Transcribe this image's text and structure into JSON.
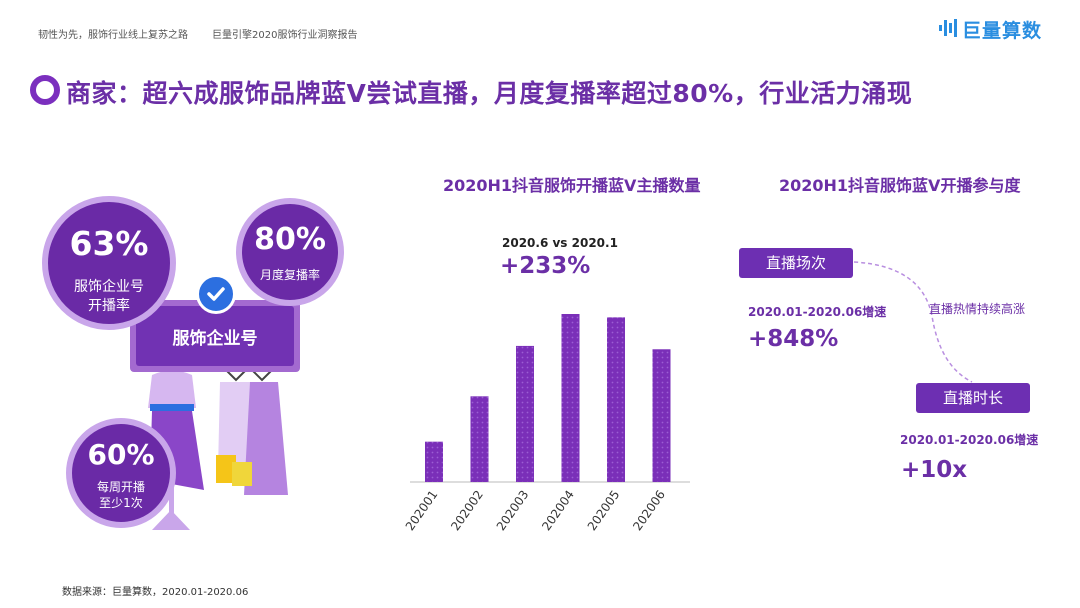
{
  "header": {
    "left_text": "韧性为先，服饰行业线上复苏之路",
    "report_name": "巨量引擎2020服饰行业洞察报告",
    "logo_text": "巨量算数"
  },
  "title": "商家：超六成服饰品牌蓝V尝试直播，月度复播率超过80%，行业活力涌现",
  "left": {
    "stat1": {
      "value": "63%",
      "label_line1": "服饰企业号",
      "label_line2": "开播率"
    },
    "stat2": {
      "value": "80%",
      "label": "月度复播率"
    },
    "stat3": {
      "value": "60%",
      "label_line1": "每周开播",
      "label_line2": "至少1次"
    },
    "sign_label": "服饰企业号"
  },
  "chart_title": "2020H1抖音服饰开播蓝V主播数量",
  "chart_note": "2020.6 vs 2020.1",
  "chart_growth": "+233%",
  "chart_data": {
    "type": "bar",
    "title": "2020H1抖音服饰开播蓝V主播数量",
    "categories": [
      "202001",
      "202002",
      "202003",
      "202004",
      "202005",
      "202006"
    ],
    "values": [
      0.24,
      0.51,
      0.81,
      1.0,
      0.98,
      0.79
    ],
    "value_unit": "relative to max (no axis printed)",
    "annotation": "2020.6 vs 2020.1 +233%",
    "grid": false,
    "legend": "none"
  },
  "right": {
    "title": "2020H1抖音服饰蓝V开播参与度",
    "pill1": "直播场次",
    "range1": "2020.01-2020.06增速",
    "growth1": "+848%",
    "middle_note": "直播热情持续高涨",
    "pill2": "直播时长",
    "range2": "2020.01-2020.06增速",
    "growth2": "+10x"
  },
  "footer": "数据来源：巨量算数，2020.01-2020.06",
  "colors": {
    "primary": "#6b2fa6",
    "bar": "#7a2fb8",
    "pill": "#6d2fb2",
    "logo": "#2a8ee0"
  }
}
